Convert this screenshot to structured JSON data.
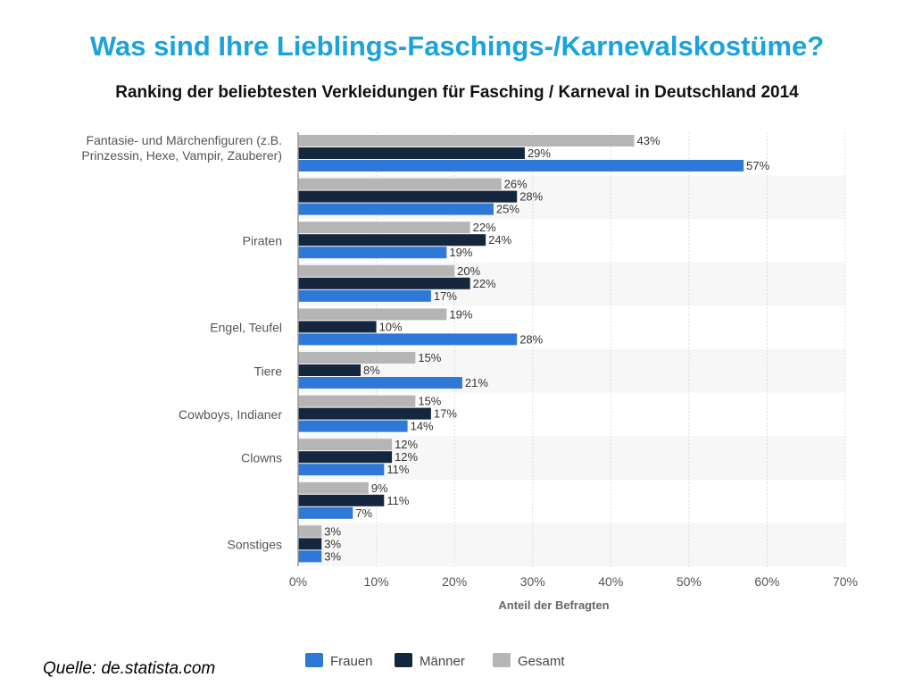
{
  "title": "Was sind Ihre Lieblings-Faschings-/Karnevalskostüme?",
  "subtitle": "Ranking der beliebtesten Verkleidungen für Fasching / Karneval in Deutschland 2014",
  "source": "Quelle: de.statista.com",
  "chart_data": {
    "type": "bar",
    "orientation": "horizontal",
    "categories": [
      [
        "Fantasie- und Märchenfiguren (z.B.",
        "Prinzessin, Hexe, Vampir, Zauberer)"
      ],
      [
        ""
      ],
      [
        "Piraten"
      ],
      [
        ""
      ],
      [
        "Engel, Teufel"
      ],
      [
        "Tiere"
      ],
      [
        "Cowboys, Indianer"
      ],
      [
        "Clowns"
      ],
      [
        ""
      ],
      [
        "Sonstiges"
      ]
    ],
    "series": [
      {
        "name": "Gesamt",
        "color": "#b5b5b5",
        "values": [
          43,
          26,
          22,
          20,
          19,
          15,
          15,
          12,
          9,
          3
        ]
      },
      {
        "name": "Männer",
        "color": "#15263f",
        "values": [
          29,
          28,
          24,
          22,
          10,
          8,
          17,
          12,
          11,
          3
        ]
      },
      {
        "name": "Frauen",
        "color": "#2e78d8",
        "values": [
          57,
          25,
          19,
          17,
          28,
          21,
          14,
          11,
          7,
          3
        ]
      }
    ],
    "legend_order": [
      "Frauen",
      "Männer",
      "Gesamt"
    ],
    "xlabel": "Anteil der Befragten",
    "xlim": [
      0,
      70
    ],
    "xticks": [
      0,
      10,
      20,
      30,
      40,
      50,
      60,
      70
    ],
    "tick_suffix": "%",
    "value_suffix": "%",
    "grid": true,
    "legend_position": "bottom"
  }
}
